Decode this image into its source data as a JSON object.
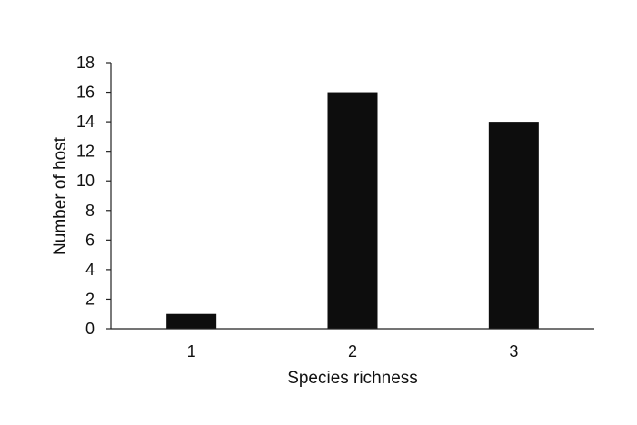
{
  "chart_data": {
    "type": "bar",
    "categories": [
      "1",
      "2",
      "3"
    ],
    "values": [
      1,
      16,
      14
    ],
    "xlabel": "Species  richness",
    "ylabel": "Number of host",
    "ylim": [
      0,
      18
    ],
    "yticks": [
      "0",
      "2",
      "4",
      "6",
      "8",
      "10",
      "12",
      "14",
      "16",
      "18"
    ],
    "grid": false,
    "legend": "none",
    "colors": {
      "bar": "#0d0d0d",
      "axis": "#222222"
    }
  }
}
